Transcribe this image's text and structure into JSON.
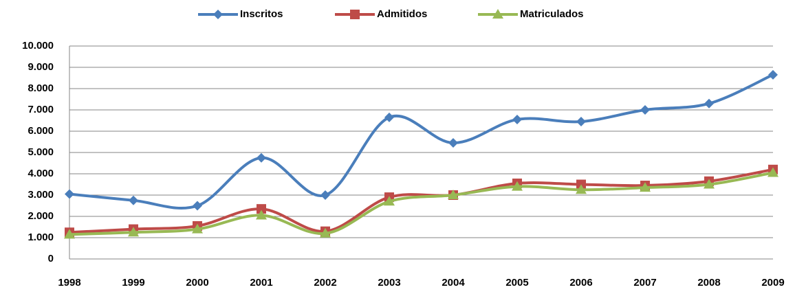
{
  "chart_data": {
    "type": "line",
    "smooth": true,
    "grid": true,
    "legend": "top",
    "categories": [
      "1998",
      "1999",
      "2000",
      "2001",
      "2002",
      "2003",
      "2004",
      "2005",
      "2006",
      "2007",
      "2008",
      "2009"
    ],
    "series": [
      {
        "name": "Inscritos",
        "color": "#4a7ebb",
        "marker": "diamond",
        "values": [
          3050,
          2750,
          2500,
          4750,
          3000,
          6650,
          5450,
          6550,
          6450,
          7000,
          7300,
          8650
        ]
      },
      {
        "name": "Admitidos",
        "color": "#be4b48",
        "marker": "square",
        "values": [
          1250,
          1400,
          1550,
          2350,
          1300,
          2900,
          3000,
          3550,
          3500,
          3450,
          3650,
          4200
        ]
      },
      {
        "name": "Matriculados",
        "color": "#98b954",
        "marker": "triangle",
        "values": [
          1150,
          1250,
          1400,
          2050,
          1200,
          2700,
          3000,
          3400,
          3250,
          3350,
          3500,
          4050
        ]
      }
    ],
    "ylim": [
      0,
      10000
    ],
    "yticks": [
      0,
      {
        "value": 1000,
        "label": "1.000"
      },
      {
        "value": 2000,
        "label": "2.000"
      },
      {
        "value": 3000,
        "label": "3.000"
      },
      {
        "value": 4000,
        "label": "4.000"
      },
      {
        "value": 5000,
        "label": "5.000"
      },
      {
        "value": 6000,
        "label": "6.000"
      },
      {
        "value": 7000,
        "label": "7.000"
      },
      {
        "value": 8000,
        "label": "8.000"
      },
      {
        "value": 9000,
        "label": "9.000"
      },
      {
        "value": 10000,
        "label": "10.000"
      }
    ]
  }
}
